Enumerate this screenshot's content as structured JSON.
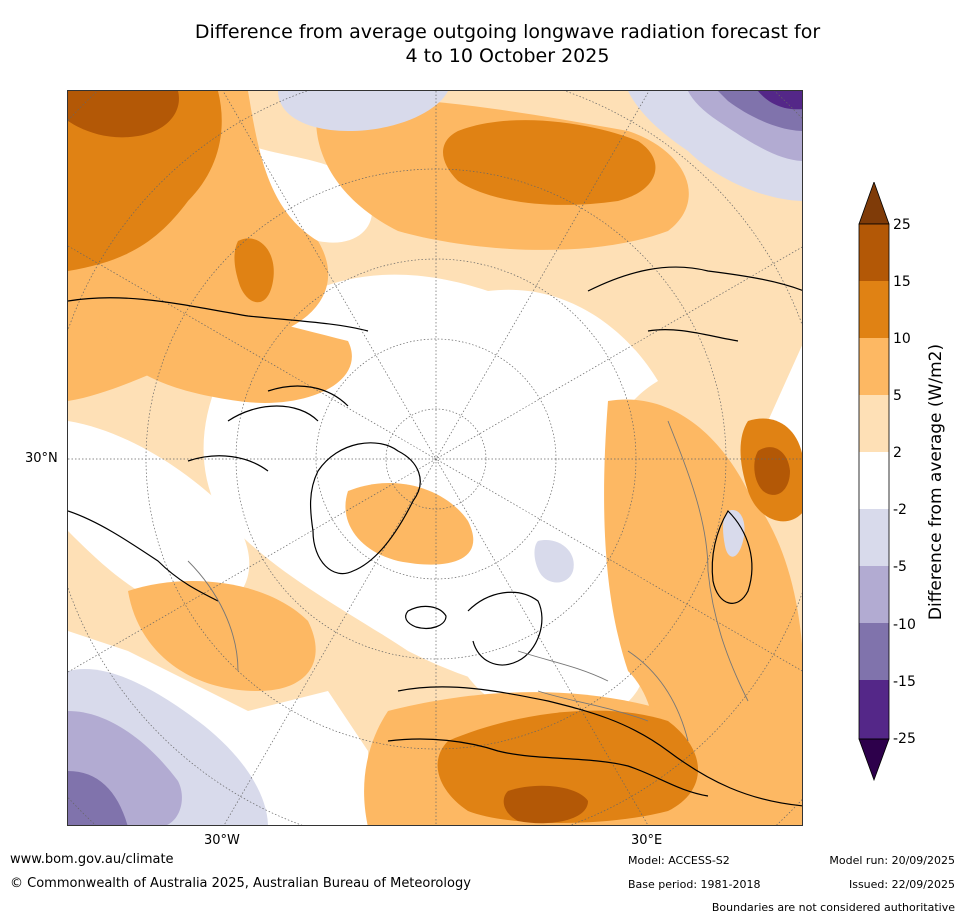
{
  "title": {
    "line1": "Difference from average outgoing longwave radiation forecast for",
    "line2": "4 to 10 October 2025"
  },
  "map": {
    "projection": "north polar stereographic",
    "lat_labels": [
      "30°N"
    ],
    "lon_labels": [
      "30°W",
      "30°E"
    ]
  },
  "colorbar": {
    "label": "Difference from average (W/m2)",
    "ticks": [
      "25",
      "15",
      "10",
      "5",
      "2",
      "-2",
      "-5",
      "-10",
      "-15",
      "-25"
    ],
    "colors": {
      "over": "#7f3b08",
      "b15_25": "#b35806",
      "b10_15": "#e08214",
      "b5_10": "#fdb863",
      "b2_5": "#fee0b6",
      "neutral": "#ffffff",
      "m2_m5": "#d8daeb",
      "m5_m10": "#b2abd2",
      "m10_m15": "#8073ac",
      "m15_m25": "#542788",
      "under": "#2d004b"
    }
  },
  "footer": {
    "url": "www.bom.gov.au/climate",
    "copyright": "© Commonwealth of Australia 2025, Australian Bureau of Meteorology",
    "model": "Model: ACCESS-S2",
    "base_period": "Base period: 1981-2018",
    "model_run": "Model run: 20/09/2025",
    "issued": "Issued: 22/09/2025",
    "disclaimer": "Boundaries are not considered authoritative"
  }
}
